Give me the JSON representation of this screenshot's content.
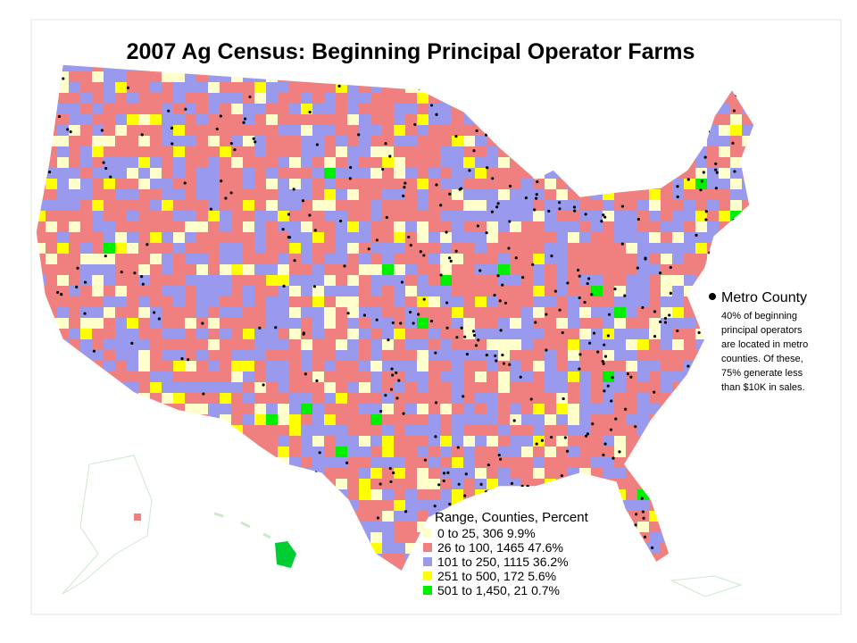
{
  "title": "2007 Ag Census: Beginning Principal Operator Farms",
  "metro_note": {
    "label": "Metro County",
    "lines": [
      "40% of beginning",
      "principal operators",
      "are located in metro",
      "counties.  Of these,",
      "75% generate less",
      "than $10K in sales."
    ]
  },
  "legend": {
    "title": "Range, Counties, Percent",
    "items": [
      {
        "label": "0 to 25,  306  9.9%",
        "color": "#ffffcc"
      },
      {
        "label": "26 to 100,  1465  47.6%",
        "color": "#f08080"
      },
      {
        "label": "101 to 250,  1115  36.2%",
        "color": "#9999ee"
      },
      {
        "label": "251 to 500,  172  5.6%",
        "color": "#ffff00"
      },
      {
        "label": "501 to 1,450,  21  0.7%",
        "color": "#00ee00"
      }
    ]
  }
}
